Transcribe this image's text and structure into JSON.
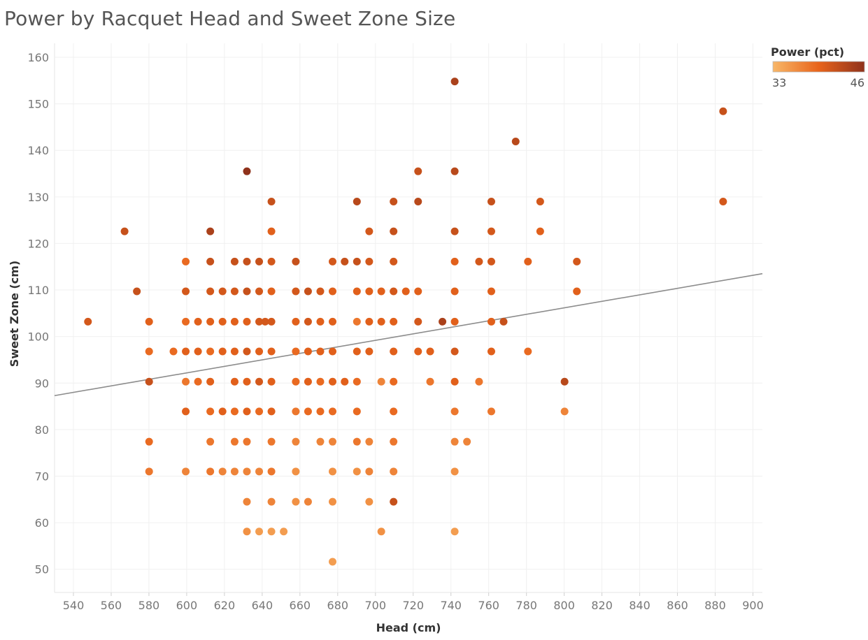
{
  "chart_data": {
    "type": "scatter",
    "title": "Power by Racquet Head and Sweet Zone Size",
    "xlabel": "Head (cm)",
    "ylabel": "Sweet Zone (cm)",
    "xlim": [
      530,
      905
    ],
    "ylim": [
      45,
      163
    ],
    "xticks": [
      540,
      560,
      580,
      600,
      620,
      640,
      660,
      680,
      700,
      720,
      740,
      760,
      780,
      800,
      820,
      840,
      860,
      880,
      900
    ],
    "yticks": [
      50,
      60,
      70,
      80,
      90,
      100,
      110,
      120,
      130,
      140,
      150,
      160
    ],
    "grid": true,
    "legend": {
      "title": "Power (pct)",
      "min_label": "33",
      "max_label": "46",
      "position": "top-right"
    },
    "color_min": 33,
    "color_max": 46,
    "colors": {
      "low": "#f8b768",
      "mid": "#e8641b",
      "high": "#8f321b"
    },
    "trend_line": {
      "x": [
        530,
        905
      ],
      "y": [
        87.3,
        113.5
      ]
    },
    "points": [
      [
        547.7,
        103.2,
        41
      ],
      [
        567.1,
        122.6,
        42
      ],
      [
        573.6,
        109.7,
        42
      ],
      [
        580.1,
        103.2,
        40
      ],
      [
        580.1,
        96.8,
        39
      ],
      [
        580.1,
        90.3,
        42
      ],
      [
        580.1,
        77.4,
        39
      ],
      [
        580.1,
        71.0,
        38
      ],
      [
        593.0,
        96.8,
        39
      ],
      [
        599.5,
        116.1,
        39
      ],
      [
        599.5,
        109.7,
        41
      ],
      [
        599.5,
        103.2,
        39
      ],
      [
        599.5,
        96.8,
        40
      ],
      [
        599.5,
        90.3,
        38
      ],
      [
        599.5,
        83.9,
        40
      ],
      [
        599.5,
        71.0,
        37
      ],
      [
        606.0,
        103.2,
        40
      ],
      [
        606.0,
        96.8,
        40
      ],
      [
        606.0,
        90.3,
        39
      ],
      [
        612.5,
        122.6,
        44
      ],
      [
        612.5,
        116.1,
        42
      ],
      [
        612.5,
        109.7,
        41
      ],
      [
        612.5,
        103.2,
        40
      ],
      [
        612.5,
        96.8,
        39
      ],
      [
        612.5,
        90.3,
        40
      ],
      [
        612.5,
        83.9,
        39
      ],
      [
        612.5,
        77.4,
        38
      ],
      [
        612.5,
        71.0,
        38
      ],
      [
        619.0,
        109.7,
        41
      ],
      [
        619.0,
        103.2,
        40
      ],
      [
        619.0,
        96.8,
        40
      ],
      [
        619.0,
        83.9,
        40
      ],
      [
        619.0,
        71.0,
        37
      ],
      [
        625.4,
        116.1,
        42
      ],
      [
        625.4,
        109.7,
        41
      ],
      [
        625.4,
        103.2,
        40
      ],
      [
        625.4,
        96.8,
        40
      ],
      [
        625.4,
        90.3,
        40
      ],
      [
        625.4,
        83.9,
        39
      ],
      [
        625.4,
        77.4,
        38
      ],
      [
        625.4,
        71.0,
        37
      ],
      [
        631.9,
        135.5,
        46
      ],
      [
        631.9,
        116.1,
        42
      ],
      [
        631.9,
        109.7,
        42
      ],
      [
        631.9,
        103.2,
        40
      ],
      [
        631.9,
        96.8,
        41
      ],
      [
        631.9,
        90.3,
        40
      ],
      [
        631.9,
        83.9,
        40
      ],
      [
        631.9,
        77.4,
        38
      ],
      [
        631.9,
        71.0,
        37
      ],
      [
        631.9,
        64.5,
        37
      ],
      [
        631.9,
        58.1,
        36
      ],
      [
        638.4,
        116.1,
        42
      ],
      [
        638.4,
        109.7,
        41
      ],
      [
        638.4,
        103.2,
        41
      ],
      [
        638.4,
        96.8,
        40
      ],
      [
        638.4,
        90.3,
        41
      ],
      [
        638.4,
        83.9,
        39
      ],
      [
        638.4,
        71.0,
        37
      ],
      [
        638.4,
        58.1,
        35
      ],
      [
        641.6,
        103.2,
        41
      ],
      [
        644.9,
        129.0,
        42
      ],
      [
        644.9,
        122.6,
        40
      ],
      [
        644.9,
        116.1,
        41
      ],
      [
        644.9,
        109.7,
        40
      ],
      [
        644.9,
        103.2,
        41
      ],
      [
        644.9,
        96.8,
        40
      ],
      [
        644.9,
        90.3,
        40
      ],
      [
        644.9,
        83.9,
        40
      ],
      [
        644.9,
        77.4,
        38
      ],
      [
        644.9,
        71.0,
        38
      ],
      [
        644.9,
        64.5,
        37
      ],
      [
        644.9,
        58.1,
        35
      ],
      [
        651.4,
        58.1,
        35
      ],
      [
        657.8,
        116.1,
        42
      ],
      [
        657.8,
        109.7,
        41
      ],
      [
        657.8,
        103.2,
        40
      ],
      [
        657.8,
        96.8,
        39
      ],
      [
        657.8,
        90.3,
        39
      ],
      [
        657.8,
        83.9,
        38
      ],
      [
        657.8,
        77.4,
        37
      ],
      [
        657.8,
        71.0,
        36
      ],
      [
        657.8,
        64.5,
        36
      ],
      [
        664.3,
        109.7,
        42
      ],
      [
        664.3,
        103.2,
        41
      ],
      [
        664.3,
        96.8,
        40
      ],
      [
        664.3,
        90.3,
        40
      ],
      [
        664.3,
        83.9,
        39
      ],
      [
        664.3,
        64.5,
        37
      ],
      [
        670.8,
        109.7,
        41
      ],
      [
        670.8,
        103.2,
        40
      ],
      [
        670.8,
        96.8,
        40
      ],
      [
        670.8,
        90.3,
        39
      ],
      [
        670.8,
        83.9,
        39
      ],
      [
        670.8,
        77.4,
        37
      ],
      [
        677.3,
        116.1,
        41
      ],
      [
        677.3,
        109.7,
        40
      ],
      [
        677.3,
        103.2,
        40
      ],
      [
        677.3,
        96.8,
        40
      ],
      [
        677.3,
        90.3,
        40
      ],
      [
        677.3,
        83.9,
        39
      ],
      [
        677.3,
        77.4,
        37
      ],
      [
        677.3,
        71.0,
        36
      ],
      [
        677.3,
        64.5,
        36
      ],
      [
        677.3,
        51.6,
        35
      ],
      [
        683.7,
        116.1,
        42
      ],
      [
        683.7,
        90.3,
        40
      ],
      [
        690.2,
        129.0,
        43
      ],
      [
        690.2,
        116.1,
        42
      ],
      [
        690.2,
        109.7,
        40
      ],
      [
        690.2,
        103.2,
        38
      ],
      [
        690.2,
        96.8,
        40
      ],
      [
        690.2,
        90.3,
        39
      ],
      [
        690.2,
        83.9,
        39
      ],
      [
        690.2,
        77.4,
        38
      ],
      [
        690.2,
        71.0,
        36
      ],
      [
        696.7,
        122.6,
        41
      ],
      [
        696.7,
        116.1,
        41
      ],
      [
        696.7,
        109.7,
        40
      ],
      [
        696.7,
        103.2,
        40
      ],
      [
        696.7,
        96.8,
        40
      ],
      [
        696.7,
        77.4,
        37
      ],
      [
        696.7,
        71.0,
        37
      ],
      [
        696.7,
        64.5,
        36
      ],
      [
        703.1,
        109.7,
        40
      ],
      [
        703.1,
        103.2,
        40
      ],
      [
        703.1,
        90.3,
        37
      ],
      [
        703.1,
        58.1,
        36
      ],
      [
        709.6,
        129.0,
        42
      ],
      [
        709.6,
        122.6,
        42
      ],
      [
        709.6,
        116.1,
        41
      ],
      [
        709.6,
        109.7,
        41
      ],
      [
        709.6,
        103.2,
        40
      ],
      [
        709.6,
        96.8,
        40
      ],
      [
        709.6,
        90.3,
        39
      ],
      [
        709.6,
        83.9,
        39
      ],
      [
        709.6,
        77.4,
        38
      ],
      [
        709.6,
        71.0,
        37
      ],
      [
        709.6,
        64.5,
        42
      ],
      [
        716.1,
        109.7,
        40
      ],
      [
        722.6,
        135.5,
        42
      ],
      [
        722.6,
        129.0,
        43
      ],
      [
        722.6,
        109.7,
        40
      ],
      [
        722.6,
        103.2,
        41
      ],
      [
        722.6,
        96.8,
        40
      ],
      [
        729.0,
        96.8,
        40
      ],
      [
        729.0,
        90.3,
        38
      ],
      [
        735.5,
        103.2,
        44
      ],
      [
        742.0,
        154.8,
        44
      ],
      [
        742.0,
        135.5,
        43
      ],
      [
        742.0,
        122.6,
        42
      ],
      [
        742.0,
        116.1,
        40
      ],
      [
        742.0,
        109.7,
        40
      ],
      [
        742.0,
        103.2,
        40
      ],
      [
        742.0,
        96.8,
        41
      ],
      [
        742.0,
        90.3,
        40
      ],
      [
        742.0,
        83.9,
        38
      ],
      [
        742.0,
        77.4,
        37
      ],
      [
        742.0,
        71.0,
        36
      ],
      [
        742.0,
        58.1,
        35
      ],
      [
        748.5,
        77.4,
        37
      ],
      [
        754.9,
        116.1,
        41
      ],
      [
        754.9,
        90.3,
        38
      ],
      [
        761.4,
        129.0,
        42
      ],
      [
        761.4,
        122.6,
        41
      ],
      [
        761.4,
        116.1,
        41
      ],
      [
        761.4,
        109.7,
        40
      ],
      [
        761.4,
        103.2,
        40
      ],
      [
        761.4,
        96.8,
        40
      ],
      [
        761.4,
        83.9,
        38
      ],
      [
        767.9,
        103.2,
        42
      ],
      [
        774.3,
        141.9,
        43
      ],
      [
        780.8,
        116.1,
        40
      ],
      [
        780.8,
        96.8,
        39
      ],
      [
        787.3,
        129.0,
        41
      ],
      [
        787.3,
        122.6,
        40
      ],
      [
        800.2,
        90.3,
        43
      ],
      [
        800.2,
        83.9,
        37
      ],
      [
        806.7,
        116.1,
        41
      ],
      [
        806.7,
        109.7,
        40
      ],
      [
        884.2,
        148.4,
        42
      ],
      [
        884.2,
        129.0,
        41
      ]
    ]
  }
}
